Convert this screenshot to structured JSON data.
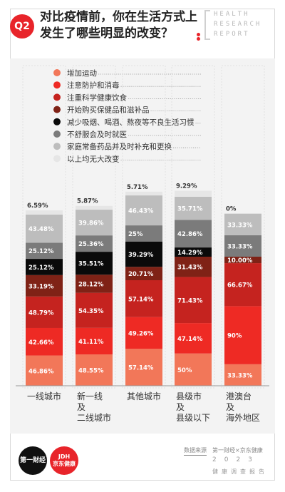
{
  "header": {
    "badge": "Q2",
    "title_line1": "对比疫情前，你在生活方式上",
    "title_line2": "发生了哪些明显的改变？",
    "brand": [
      "HEALTH",
      "RESEARCH",
      "REPORT"
    ]
  },
  "footer": {
    "logo1": "第一财经",
    "logo2_top": "JDH",
    "logo2_bottom": "京东健康",
    "source_label": "数据来源",
    "source_text": "第一财经×京东健康",
    "year": "2023",
    "report": "健康调查报告"
  },
  "chart_data": {
    "type": "bar",
    "stacked": true,
    "legend_placement": "top-left",
    "categories": [
      [
        "一线城市"
      ],
      [
        "新一线",
        "及",
        "二线城市"
      ],
      [
        "其他城市"
      ],
      [
        "县级市",
        "及",
        "县级以下"
      ],
      [
        "港澳台",
        "及",
        "海外地区"
      ]
    ],
    "series": [
      {
        "name": "增加运动",
        "color": "#f27759",
        "values": [
          46.86,
          48.55,
          57.14,
          50,
          33.33
        ],
        "labels": [
          "46.86%",
          "48.55%",
          "57.14%",
          "50%",
          "33.33%"
        ]
      },
      {
        "name": "注意防护和消毒",
        "color": "#ee2a24",
        "values": [
          42.66,
          41.11,
          49.26,
          47.14,
          90
        ],
        "labels": [
          "42.66%",
          "41.11%",
          "49.26%",
          "47.14%",
          "90%"
        ]
      },
      {
        "name": "注重科学健康饮食",
        "color": "#c5231f",
        "values": [
          48.79,
          54.35,
          57.14,
          71.43,
          66.67
        ],
        "labels": [
          "48.79%",
          "54.35%",
          "57.14%",
          "71.43%",
          "66.67%"
        ]
      },
      {
        "name": "开始购买保健品和滋补品",
        "color": "#7f2216",
        "values": [
          33.19,
          28.12,
          20.71,
          31.43,
          10
        ],
        "labels": [
          "33.19%",
          "28.12%",
          "20.71%",
          "31.43%",
          "10.00%"
        ]
      },
      {
        "name": "减少吸烟、喝酒、熬夜等不良生活习惯",
        "color": "#0a0a0a",
        "values": [
          25.12,
          35.51,
          39.29,
          14.29,
          0
        ],
        "labels": [
          "25.12%",
          "35.51%",
          "39.29%",
          "14.29%",
          ""
        ]
      },
      {
        "name": "不舒服会及时就医",
        "color": "#7b7b7b",
        "values": [
          25.12,
          25.36,
          25,
          42.86,
          33.33
        ],
        "labels": [
          "25.12%",
          "25.36%",
          "25%",
          "42.86%",
          "33.33%"
        ]
      },
      {
        "name": "家庭常备药品并及时补充和更换",
        "color": "#bdbdbd",
        "values": [
          43.48,
          39.86,
          46.43,
          35.71,
          33.33
        ],
        "labels": [
          "43.48%",
          "39.86%",
          "46.43%",
          "35.71%",
          "33.33%"
        ]
      },
      {
        "name": "以上均无大改变",
        "color": "#e6e6e6",
        "values": [
          6.59,
          5.87,
          5.71,
          9.29,
          0
        ],
        "labels": [
          "6.59%",
          "5.87%",
          "5.71%",
          "9.29%",
          "0%"
        ]
      }
    ]
  }
}
